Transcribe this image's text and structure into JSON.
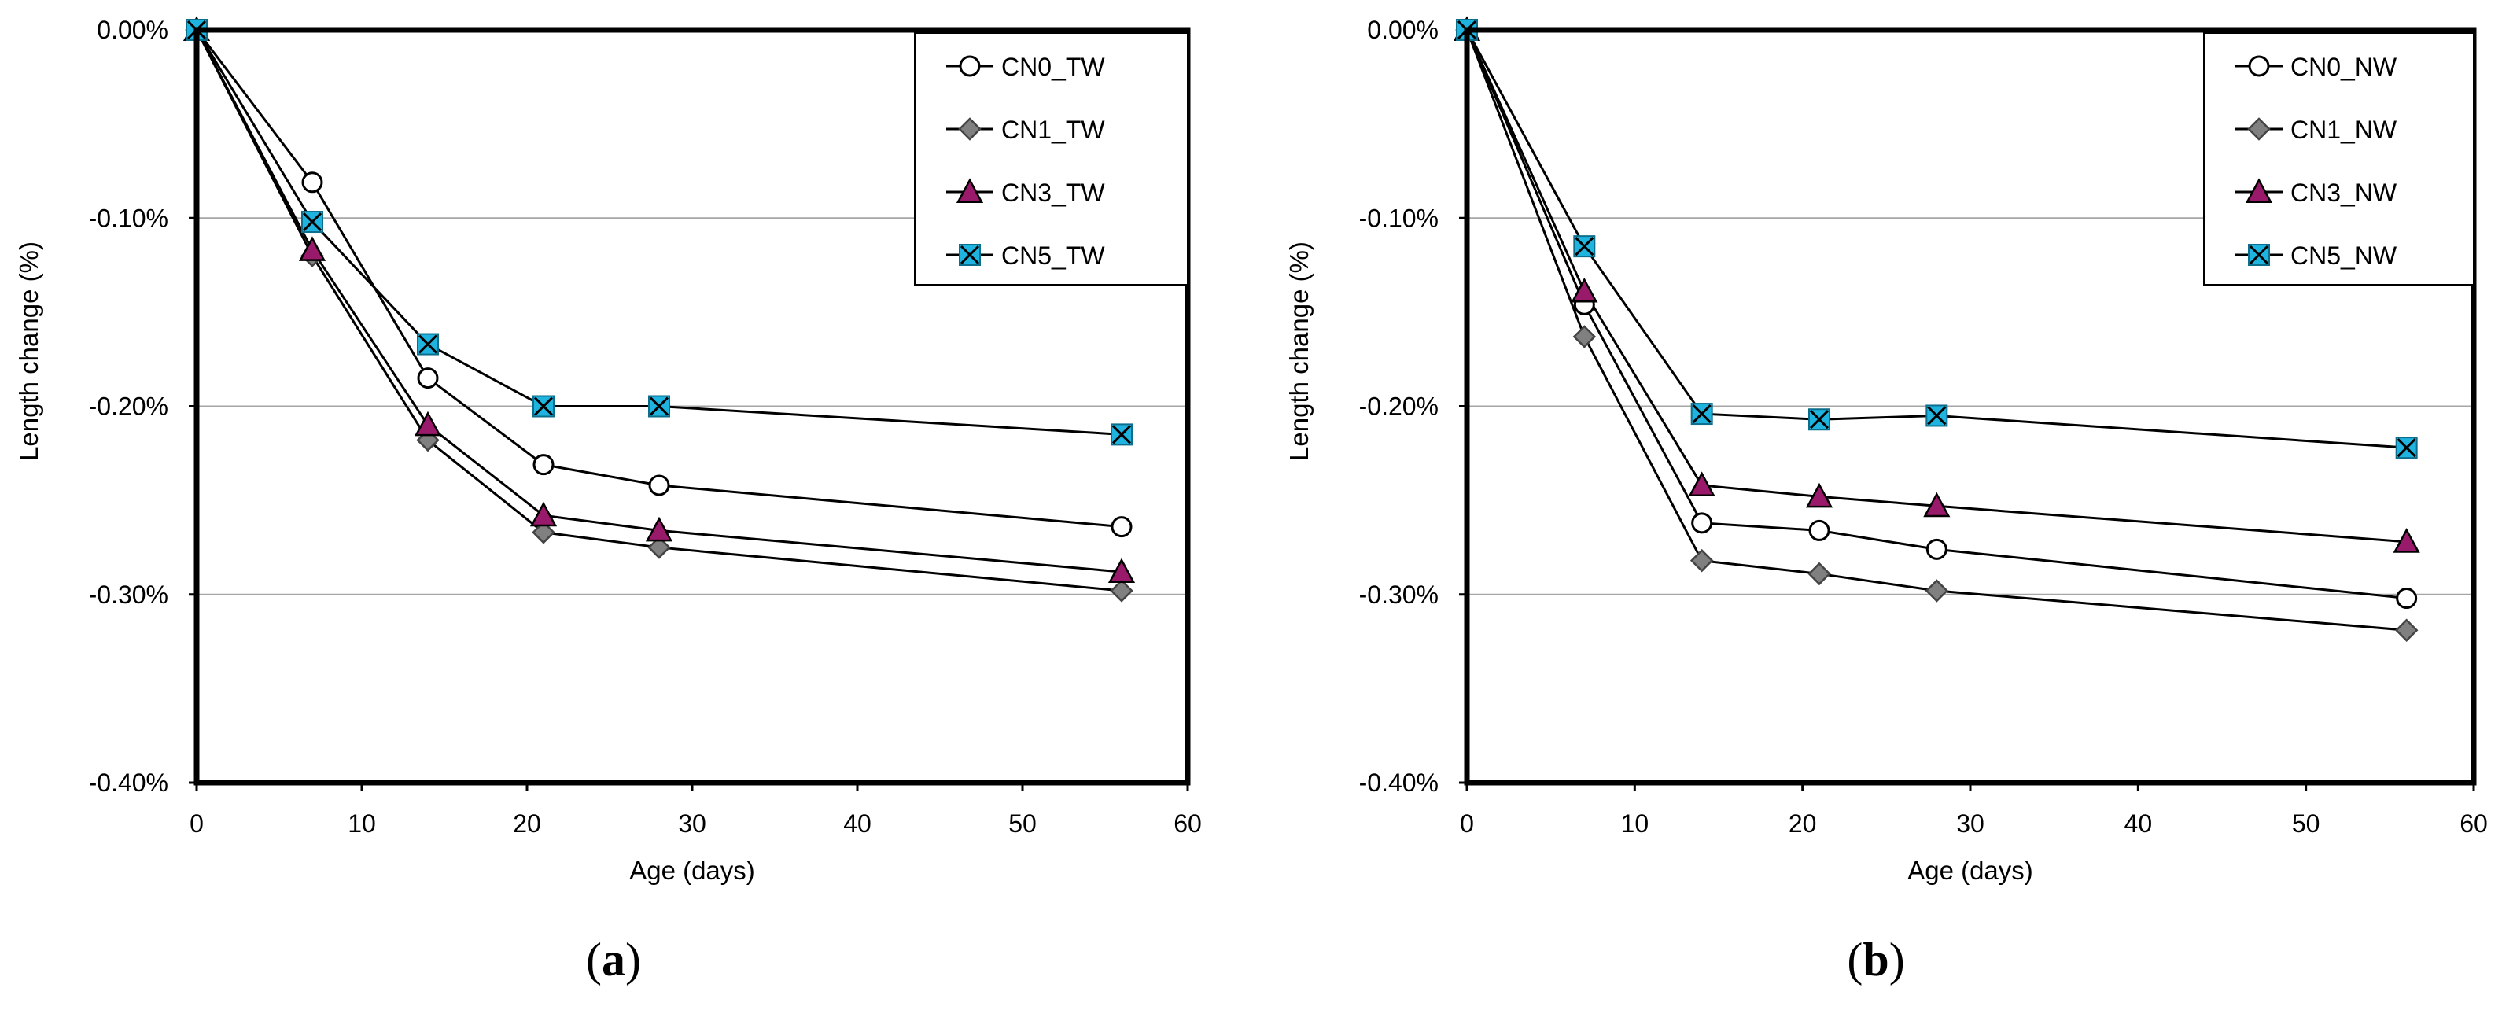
{
  "chart_data": [
    {
      "type": "line",
      "panel_label": "a",
      "title": "",
      "xlabel": "Age (days)",
      "ylabel": "Length change (%)",
      "xlim": [
        0,
        60
      ],
      "ylim": [
        -0.4,
        0.0
      ],
      "xticks": [
        "0",
        "10",
        "20",
        "30",
        "40",
        "50",
        "60"
      ],
      "yticks": [
        "0.00%",
        "-0.10%",
        "-0.20%",
        "-0.30%",
        "-0.40%"
      ],
      "grid": "horizontal",
      "legend_position": "top-right",
      "x": [
        0,
        7,
        14,
        21,
        28,
        56
      ],
      "series": [
        {
          "name": "CN0_TW",
          "marker": "circle",
          "color": "#ffffff",
          "values": [
            0,
            -0.081,
            -0.185,
            -0.231,
            -0.242,
            -0.264
          ]
        },
        {
          "name": "CN1_TW",
          "marker": "diamond",
          "color": "#808080",
          "values": [
            0,
            -0.12,
            -0.218,
            -0.267,
            -0.275,
            -0.298
          ]
        },
        {
          "name": "CN3_TW",
          "marker": "triangle",
          "color": "#99196b",
          "values": [
            0,
            -0.117,
            -0.21,
            -0.258,
            -0.266,
            -0.288
          ]
        },
        {
          "name": "CN5_TW",
          "marker": "x-square",
          "color": "#1fb4e0",
          "values": [
            0,
            -0.102,
            -0.167,
            -0.2,
            -0.2,
            -0.215
          ]
        }
      ]
    },
    {
      "type": "line",
      "panel_label": "b",
      "title": "",
      "xlabel": "Age (days)",
      "ylabel": "Length change (%)",
      "xlim": [
        0,
        60
      ],
      "ylim": [
        -0.4,
        0.0
      ],
      "xticks": [
        "0",
        "10",
        "20",
        "30",
        "40",
        "50",
        "60"
      ],
      "yticks": [
        "0.00%",
        "-0.10%",
        "-0.20%",
        "-0.30%",
        "-0.40%"
      ],
      "grid": "horizontal",
      "legend_position": "top-right",
      "x": [
        0,
        7,
        14,
        21,
        28,
        56
      ],
      "series": [
        {
          "name": "CN0_NW",
          "marker": "circle",
          "color": "#ffffff",
          "values": [
            0,
            -0.146,
            -0.262,
            -0.266,
            -0.276,
            -0.302
          ]
        },
        {
          "name": "CN1_NW",
          "marker": "diamond",
          "color": "#808080",
          "values": [
            0,
            -0.163,
            -0.282,
            -0.289,
            -0.298,
            -0.319
          ]
        },
        {
          "name": "CN3_NW",
          "marker": "triangle",
          "color": "#99196b",
          "values": [
            0,
            -0.139,
            -0.242,
            -0.248,
            -0.253,
            -0.272
          ]
        },
        {
          "name": "CN5_NW",
          "marker": "x-square",
          "color": "#1fb4e0",
          "values": [
            0,
            -0.115,
            -0.204,
            -0.207,
            -0.205,
            -0.222
          ]
        }
      ]
    }
  ]
}
